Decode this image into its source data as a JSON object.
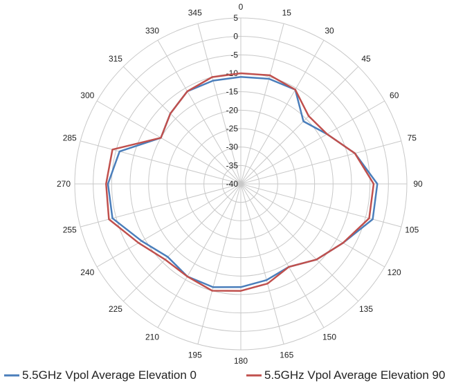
{
  "chart_data": {
    "type": "polar-line",
    "title": "",
    "r_axis": {
      "min": -40,
      "max": 5,
      "step": 5,
      "tick_labels": [
        "5",
        "0",
        "-5",
        "-10",
        "-15",
        "-20",
        "-25",
        "-30",
        "-35",
        "-40"
      ]
    },
    "angle_axis": {
      "step": 15,
      "tick_labels": [
        "0",
        "15",
        "30",
        "45",
        "60",
        "75",
        "90",
        "105",
        "120",
        "135",
        "150",
        "165",
        "180",
        "195",
        "210",
        "225",
        "240",
        "255",
        "270",
        "285",
        "300",
        "315",
        "330",
        "345"
      ]
    },
    "grid": true,
    "legend_position": "bottom",
    "series": [
      {
        "name": "5.5GHz Vpol Average Elevation 0",
        "color": "#4a7ebb",
        "angles": [
          0,
          15,
          30,
          45,
          60,
          75,
          90,
          105,
          120,
          135,
          150,
          165,
          180,
          195,
          210,
          225,
          240,
          255,
          270,
          285,
          300,
          315,
          330,
          345,
          360
        ],
        "values": [
          -11,
          -10.5,
          -10.5,
          -16,
          -13,
          -8,
          -3,
          -3,
          -8,
          -11,
          -14,
          -13,
          -12,
          -11,
          -11,
          -12,
          -9,
          -4,
          -4,
          -6,
          -15,
          -13,
          -11,
          -11,
          -11
        ]
      },
      {
        "name": "5.5GHz Vpol Average Elevation 90",
        "color": "#c0504d",
        "angles": [
          0,
          15,
          30,
          45,
          60,
          75,
          90,
          105,
          120,
          135,
          150,
          165,
          180,
          195,
          210,
          225,
          240,
          255,
          270,
          285,
          300,
          315,
          330,
          345,
          360
        ],
        "values": [
          -10,
          -9.5,
          -10.5,
          -14,
          -13,
          -8,
          -4,
          -4,
          -8,
          -11,
          -14,
          -12,
          -11,
          -10,
          -11,
          -11,
          -8,
          -3,
          -3.5,
          -4,
          -15,
          -13,
          -11,
          -10,
          -10
        ]
      }
    ]
  }
}
